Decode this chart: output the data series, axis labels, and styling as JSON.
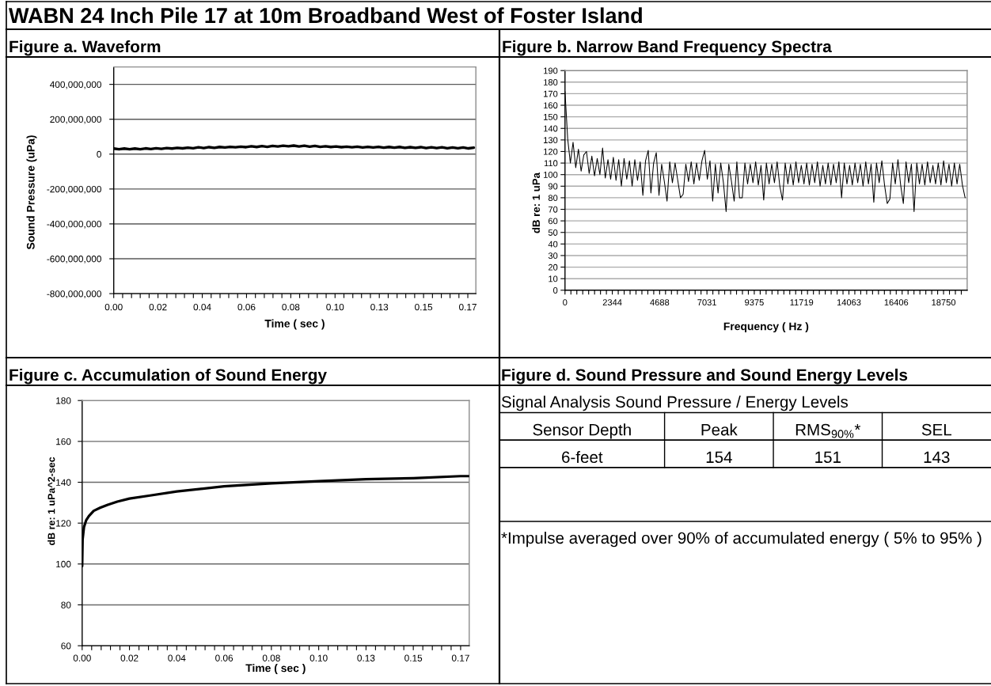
{
  "chart_data": [
    {
      "type": "line",
      "title": "WABN 24 Inch Pile 17 at 10m Broadband West of Foster Island",
      "subtitle": "Figure a. Waveform",
      "xlabel": "Time ( sec )",
      "ylabel": "Sound Pressure (uPa)",
      "color": "#000000",
      "x": [
        0,
        0.0025,
        0.005,
        0.0075,
        0.01,
        0.0125,
        0.015,
        0.0175,
        0.02,
        0.0225,
        0.025,
        0.0275,
        0.03,
        0.0325,
        0.035,
        0.0375,
        0.04,
        0.0425,
        0.045,
        0.0475,
        0.05,
        0.0525,
        0.055,
        0.0575,
        0.06,
        0.0625,
        0.065,
        0.0675,
        0.07,
        0.0725,
        0.075,
        0.0775,
        0.08,
        0.0825,
        0.085,
        0.0875,
        0.09,
        0.0925,
        0.095,
        0.0975,
        0.1,
        0.1025,
        0.105,
        0.1075,
        0.11,
        0.1125,
        0.115,
        0.1175,
        0.12,
        0.1225,
        0.125,
        0.1275,
        0.13,
        0.1325,
        0.135,
        0.1375,
        0.14,
        0.1425,
        0.145,
        0.1475,
        0.15,
        0.1525,
        0.155,
        0.1575,
        0.16,
        0.1625,
        0.165,
        0.1675,
        0.17
      ],
      "values": [
        32000000,
        28000000,
        32000000,
        28000000,
        32000000,
        28000000,
        33000000,
        29000000,
        34000000,
        30000000,
        35000000,
        32000000,
        36000000,
        33000000,
        37000000,
        34000000,
        39000000,
        35000000,
        40000000,
        36000000,
        41000000,
        38000000,
        42000000,
        39000000,
        43000000,
        40000000,
        45000000,
        41000000,
        46000000,
        42000000,
        47000000,
        44000000,
        48000000,
        45000000,
        49000000,
        44000000,
        48000000,
        43000000,
        47000000,
        42000000,
        45000000,
        41000000,
        44000000,
        40000000,
        43000000,
        39000000,
        43000000,
        38000000,
        42000000,
        38000000,
        42000000,
        37000000,
        41000000,
        37000000,
        41000000,
        36000000,
        40000000,
        36000000,
        40000000,
        35000000,
        39000000,
        35000000,
        39000000,
        34000000,
        38000000,
        34000000,
        38000000,
        33000000,
        37000000
      ],
      "xlim": [
        0,
        0.171
      ],
      "xticks": [
        {
          "value": 0,
          "label": "0.00"
        },
        {
          "value": 0.0042,
          "label": null
        },
        {
          "value": 0.0084,
          "label": null
        },
        {
          "value": 0.0125,
          "label": null
        },
        {
          "value": 0.0167,
          "label": null
        },
        {
          "value": 0.0209,
          "label": "0.02"
        },
        {
          "value": 0.0251,
          "label": null
        },
        {
          "value": 0.0293,
          "label": null
        },
        {
          "value": 0.0334,
          "label": null
        },
        {
          "value": 0.0376,
          "label": null
        },
        {
          "value": 0.0418,
          "label": "0.04"
        },
        {
          "value": 0.046,
          "label": null
        },
        {
          "value": 0.0502,
          "label": null
        },
        {
          "value": 0.0543,
          "label": null
        },
        {
          "value": 0.0585,
          "label": null
        },
        {
          "value": 0.0627,
          "label": "0.06"
        },
        {
          "value": 0.0669,
          "label": null
        },
        {
          "value": 0.0711,
          "label": null
        },
        {
          "value": 0.0752,
          "label": null
        },
        {
          "value": 0.0794,
          "label": null
        },
        {
          "value": 0.0836,
          "label": "0.08"
        },
        {
          "value": 0.0878,
          "label": null
        },
        {
          "value": 0.092,
          "label": null
        },
        {
          "value": 0.0961,
          "label": null
        },
        {
          "value": 0.1003,
          "label": null
        },
        {
          "value": 0.1045,
          "label": "0.10"
        },
        {
          "value": 0.1087,
          "label": null
        },
        {
          "value": 0.1129,
          "label": null
        },
        {
          "value": 0.117,
          "label": null
        },
        {
          "value": 0.1212,
          "label": null
        },
        {
          "value": 0.1254,
          "label": "0.13"
        },
        {
          "value": 0.1296,
          "label": null
        },
        {
          "value": 0.1338,
          "label": null
        },
        {
          "value": 0.1379,
          "label": null
        },
        {
          "value": 0.1421,
          "label": null
        },
        {
          "value": 0.1463,
          "label": "0.15"
        },
        {
          "value": 0.1505,
          "label": null
        },
        {
          "value": 0.1547,
          "label": null
        },
        {
          "value": 0.1588,
          "label": null
        },
        {
          "value": 0.163,
          "label": null
        },
        {
          "value": 0.1672,
          "label": "0.17"
        }
      ],
      "ylim": [
        -800000000,
        500000000
      ],
      "yticks": [
        {
          "value": -800000000,
          "label": "-800,000,000"
        },
        {
          "value": -600000000,
          "label": "-600,000,000"
        },
        {
          "value": -400000000,
          "label": "-400,000,000"
        },
        {
          "value": -200000000,
          "label": "-200,000,000"
        },
        0,
        {
          "value": 200000000,
          "label": "200,000,000"
        },
        {
          "value": 400000000,
          "label": "400,000,000"
        }
      ],
      "grid": "y"
    },
    {
      "type": "line",
      "title": "Figure b. Narrow Band Frequency Spectra",
      "xlabel": "Frequency ( Hz )",
      "ylabel": "dB re: 1 uPa",
      "color": "#000000",
      "x": [
        0,
        133,
        266,
        399,
        532,
        665,
        798,
        931,
        1064,
        1197,
        1330,
        1463,
        1596,
        1729,
        1862,
        1995,
        2128,
        2261,
        2394,
        2527,
        2660,
        2793,
        2926,
        3059,
        3192,
        3325,
        3458,
        3591,
        3724,
        3857,
        3990,
        4123,
        4256,
        4389,
        4522,
        4655,
        4788,
        4921,
        5054,
        5187,
        5320,
        5453,
        5586,
        5719,
        5852,
        5985,
        6118,
        6251,
        6384,
        6517,
        6650,
        6783,
        6916,
        7049,
        7182,
        7315,
        7448,
        7581,
        7714,
        7847,
        7980,
        8113,
        8246,
        8379,
        8512,
        8645,
        8778,
        8911,
        9044,
        9177,
        9310,
        9443,
        9576,
        9709,
        9842,
        9975,
        10108,
        10241,
        10374,
        10507,
        10640,
        10773,
        10906,
        11039,
        11172,
        11305,
        11438,
        11571,
        11704,
        11837,
        11970,
        12103,
        12236,
        12369,
        12502,
        12635,
        12768,
        12901,
        13034,
        13167,
        13300,
        13433,
        13566,
        13699,
        13832,
        13965,
        14098,
        14231,
        14364,
        14497,
        14630,
        14763,
        14896,
        15029,
        15162,
        15295,
        15428,
        15561,
        15694,
        15827,
        15960,
        16093,
        16226,
        16359,
        16492,
        16625,
        16758,
        16891,
        17024,
        17157,
        17290,
        17423,
        17556,
        17689,
        17822,
        17955,
        18088,
        18221,
        18354,
        18487,
        18620,
        18753,
        18886,
        19019,
        19152,
        19285,
        19418,
        19551,
        19684,
        19817
      ],
      "values": [
        172,
        131,
        110,
        128,
        106,
        122,
        103,
        117,
        120,
        101,
        116,
        99,
        114,
        100,
        123,
        97,
        113,
        96,
        115,
        95,
        113,
        90,
        114,
        96,
        112,
        90,
        113,
        95,
        111,
        82,
        112,
        121,
        84,
        110,
        119,
        82,
        109,
        94,
        77,
        111,
        93,
        110,
        95,
        80,
        83,
        109,
        94,
        111,
        92,
        110,
        95,
        112,
        121,
        96,
        112,
        77,
        109,
        84,
        110,
        93,
        68,
        109,
        94,
        77,
        111,
        80,
        80,
        110,
        92,
        109,
        93,
        111,
        91,
        108,
        78,
        110,
        92,
        109,
        93,
        111,
        90,
        78,
        110,
        92,
        109,
        91,
        111,
        93,
        108,
        92,
        110,
        91,
        109,
        93,
        111,
        90,
        108,
        92,
        110,
        91,
        109,
        93,
        111,
        80,
        110,
        92,
        108,
        91,
        110,
        93,
        109,
        90,
        111,
        92,
        109,
        76,
        110,
        93,
        112,
        91,
        75,
        79,
        110,
        92,
        113,
        91,
        75,
        111,
        93,
        109,
        68,
        110,
        92,
        109,
        91,
        111,
        93,
        108,
        92,
        110,
        91,
        112,
        93,
        109,
        90,
        110,
        92,
        109,
        91,
        80
      ],
      "xlim": [
        0,
        19920
      ],
      "xticks": [
        0,
        {
          "value": 293,
          "label": null
        },
        {
          "value": 586,
          "label": null
        },
        {
          "value": 879,
          "label": null
        },
        {
          "value": 1172,
          "label": null
        },
        {
          "value": 1465,
          "label": null
        },
        {
          "value": 1758,
          "label": null
        },
        {
          "value": 2051,
          "label": null
        },
        {
          "value": 2343.75,
          "label": "2344"
        },
        {
          "value": 2637,
          "label": null
        },
        {
          "value": 2930,
          "label": null
        },
        {
          "value": 3223,
          "label": null
        },
        {
          "value": 3516,
          "label": null
        },
        {
          "value": 3809,
          "label": null
        },
        {
          "value": 4102,
          "label": null
        },
        {
          "value": 4395,
          "label": null
        },
        {
          "value": 4687.5,
          "label": "4688"
        },
        {
          "value": 4980,
          "label": null
        },
        {
          "value": 5273,
          "label": null
        },
        {
          "value": 5566,
          "label": null
        },
        {
          "value": 5859,
          "label": null
        },
        {
          "value": 6152,
          "label": null
        },
        {
          "value": 6445,
          "label": null
        },
        {
          "value": 6738,
          "label": null
        },
        {
          "value": 7031.25,
          "label": "7031"
        },
        {
          "value": 7324,
          "label": null
        },
        {
          "value": 7617,
          "label": null
        },
        {
          "value": 7910,
          "label": null
        },
        {
          "value": 8203,
          "label": null
        },
        {
          "value": 8496,
          "label": null
        },
        {
          "value": 8789,
          "label": null
        },
        {
          "value": 9082,
          "label": null
        },
        9375,
        {
          "value": 9668,
          "label": null
        },
        {
          "value": 9961,
          "label": null
        },
        {
          "value": 10254,
          "label": null
        },
        {
          "value": 10547,
          "label": null
        },
        {
          "value": 10840,
          "label": null
        },
        {
          "value": 11133,
          "label": null
        },
        {
          "value": 11426,
          "label": null
        },
        {
          "value": 11718.75,
          "label": "11719"
        },
        {
          "value": 12012,
          "label": null
        },
        {
          "value": 12305,
          "label": null
        },
        {
          "value": 12598,
          "label": null
        },
        {
          "value": 12891,
          "label": null
        },
        {
          "value": 13184,
          "label": null
        },
        {
          "value": 13477,
          "label": null
        },
        {
          "value": 13770,
          "label": null
        },
        {
          "value": 14062.5,
          "label": "14063"
        },
        {
          "value": 14355,
          "label": null
        },
        {
          "value": 14648,
          "label": null
        },
        {
          "value": 14941,
          "label": null
        },
        {
          "value": 15234,
          "label": null
        },
        {
          "value": 15527,
          "label": null
        },
        {
          "value": 15820,
          "label": null
        },
        {
          "value": 16113,
          "label": null
        },
        {
          "value": 16406.25,
          "label": "16406"
        },
        {
          "value": 16699,
          "label": null
        },
        {
          "value": 16992,
          "label": null
        },
        {
          "value": 17285,
          "label": null
        },
        {
          "value": 17578,
          "label": null
        },
        {
          "value": 17871,
          "label": null
        },
        {
          "value": 18164,
          "label": null
        },
        {
          "value": 18457,
          "label": null
        },
        18750,
        {
          "value": 19043,
          "label": null
        },
        {
          "value": 19336,
          "label": null
        },
        {
          "value": 19629,
          "label": null
        }
      ],
      "ylim": [
        0,
        190
      ],
      "yticks": [
        0,
        10,
        20,
        30,
        40,
        50,
        60,
        70,
        80,
        90,
        100,
        110,
        120,
        130,
        140,
        150,
        160,
        170,
        180,
        190
      ],
      "grid": "y"
    },
    {
      "type": "line",
      "title": "Figure c. Accumulation of Sound Energy",
      "xlabel": "Time ( sec )",
      "ylabel": "dB re: 1 uPa^2-sec",
      "color": "#000000",
      "x": [
        0,
        0.0002,
        0.0008,
        0.0018,
        0.003,
        0.0051,
        0.0079,
        0.0113,
        0.0155,
        0.0209,
        0.03,
        0.0418,
        0.0627,
        0.0836,
        0.1045,
        0.1254,
        0.1463,
        0.1672,
        0.171
      ],
      "values": [
        99,
        112,
        118,
        121.5,
        123.5,
        126,
        127.5,
        129,
        130.5,
        132,
        133.5,
        135.5,
        138,
        139.5,
        140.5,
        141.5,
        142,
        143,
        143
      ],
      "xlim": [
        0,
        0.171
      ],
      "xticks": [
        {
          "value": 0,
          "label": "0.00"
        },
        {
          "value": 0.0042,
          "label": null
        },
        {
          "value": 0.0084,
          "label": null
        },
        {
          "value": 0.0125,
          "label": null
        },
        {
          "value": 0.0167,
          "label": null
        },
        {
          "value": 0.0209,
          "label": "0.02"
        },
        {
          "value": 0.0251,
          "label": null
        },
        {
          "value": 0.0293,
          "label": null
        },
        {
          "value": 0.0334,
          "label": null
        },
        {
          "value": 0.0376,
          "label": null
        },
        {
          "value": 0.0418,
          "label": "0.04"
        },
        {
          "value": 0.046,
          "label": null
        },
        {
          "value": 0.0502,
          "label": null
        },
        {
          "value": 0.0543,
          "label": null
        },
        {
          "value": 0.0585,
          "label": null
        },
        {
          "value": 0.0627,
          "label": "0.06"
        },
        {
          "value": 0.0669,
          "label": null
        },
        {
          "value": 0.0711,
          "label": null
        },
        {
          "value": 0.0752,
          "label": null
        },
        {
          "value": 0.0794,
          "label": null
        },
        {
          "value": 0.0836,
          "label": "0.08"
        },
        {
          "value": 0.0878,
          "label": null
        },
        {
          "value": 0.092,
          "label": null
        },
        {
          "value": 0.0961,
          "label": null
        },
        {
          "value": 0.1003,
          "label": null
        },
        {
          "value": 0.1045,
          "label": "0.10"
        },
        {
          "value": 0.1087,
          "label": null
        },
        {
          "value": 0.1129,
          "label": null
        },
        {
          "value": 0.117,
          "label": null
        },
        {
          "value": 0.1212,
          "label": null
        },
        {
          "value": 0.1254,
          "label": "0.13"
        },
        {
          "value": 0.1296,
          "label": null
        },
        {
          "value": 0.1338,
          "label": null
        },
        {
          "value": 0.1379,
          "label": null
        },
        {
          "value": 0.1421,
          "label": null
        },
        {
          "value": 0.1463,
          "label": "0.15"
        },
        {
          "value": 0.1505,
          "label": null
        },
        {
          "value": 0.1547,
          "label": null
        },
        {
          "value": 0.1588,
          "label": null
        },
        {
          "value": 0.163,
          "label": null
        },
        {
          "value": 0.1672,
          "label": "0.17"
        }
      ],
      "ylim": [
        60,
        180
      ],
      "yticks": [
        60,
        80,
        100,
        120,
        140,
        160,
        180
      ],
      "grid": "y"
    },
    {
      "type": "other",
      "title": "Figure d. Sound Pressure and Sound Energy Levels",
      "subtitle": "Signal Analysis Sound Pressure / Energy Levels",
      "categories": [
        "Sensor Depth",
        "Peak",
        "RMS$_{90%}$*",
        "SEL"
      ],
      "cell_labels": [
        [
          "6-feet",
          "154",
          "151",
          "143"
        ]
      ],
      "annotations": [
        "*Impulse averaged over 90% of accumulated energy ( 5% to 95% )"
      ]
    }
  ]
}
